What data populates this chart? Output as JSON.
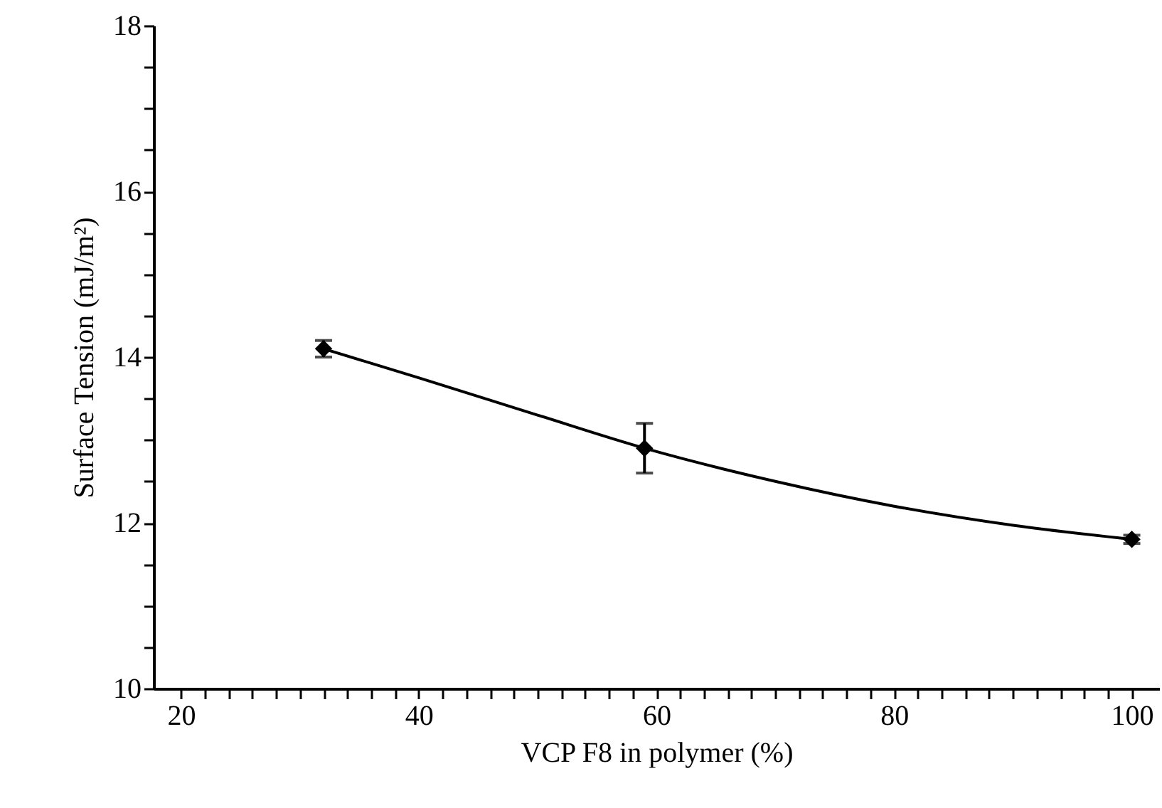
{
  "chart_data": {
    "type": "scatter",
    "xlabel": "VCP F8 in polymer (%)",
    "ylabel": "Surface Tension (mJ/m²)",
    "xlim": [
      17.7,
      102.3
    ],
    "ylim": [
      10,
      18
    ],
    "xticks": [
      20,
      {
        "value": 22,
        "label": null
      },
      {
        "value": 24,
        "label": null
      },
      {
        "value": 26,
        "label": null
      },
      {
        "value": 28,
        "label": null
      },
      {
        "value": 30,
        "label": null
      },
      {
        "value": 32,
        "label": null
      },
      {
        "value": 34,
        "label": null
      },
      {
        "value": 36,
        "label": null
      },
      {
        "value": 38,
        "label": null
      },
      40,
      {
        "value": 42,
        "label": null
      },
      {
        "value": 44,
        "label": null
      },
      {
        "value": 46,
        "label": null
      },
      {
        "value": 48,
        "label": null
      },
      {
        "value": 50,
        "label": null
      },
      {
        "value": 52,
        "label": null
      },
      {
        "value": 54,
        "label": null
      },
      {
        "value": 56,
        "label": null
      },
      {
        "value": 58,
        "label": null
      },
      60,
      {
        "value": 62,
        "label": null
      },
      {
        "value": 64,
        "label": null
      },
      {
        "value": 66,
        "label": null
      },
      {
        "value": 68,
        "label": null
      },
      {
        "value": 70,
        "label": null
      },
      {
        "value": 72,
        "label": null
      },
      {
        "value": 74,
        "label": null
      },
      {
        "value": 76,
        "label": null
      },
      {
        "value": 78,
        "label": null
      },
      80,
      {
        "value": 82,
        "label": null
      },
      {
        "value": 84,
        "label": null
      },
      {
        "value": 86,
        "label": null
      },
      {
        "value": 88,
        "label": null
      },
      {
        "value": 90,
        "label": null
      },
      {
        "value": 92,
        "label": null
      },
      {
        "value": 94,
        "label": null
      },
      {
        "value": 96,
        "label": null
      },
      {
        "value": 98,
        "label": null
      },
      100
    ],
    "yticks": [
      10,
      {
        "value": 10.5,
        "label": null
      },
      {
        "value": 11,
        "label": null
      },
      {
        "value": 11.5,
        "label": null
      },
      12,
      {
        "value": 12.5,
        "label": null
      },
      {
        "value": 13,
        "label": null
      },
      {
        "value": 13.5,
        "label": null
      },
      14,
      {
        "value": 14.5,
        "label": null
      },
      {
        "value": 15,
        "label": null
      },
      {
        "value": 15.5,
        "label": null
      },
      16,
      {
        "value": 16.5,
        "label": null
      },
      {
        "value": 17,
        "label": null
      },
      {
        "value": 17.5,
        "label": null
      },
      18
    ],
    "grid": false,
    "series": [
      {
        "type": "line",
        "color": "#000000",
        "marker": "none",
        "line_style": "solid",
        "x": [
          32,
          40,
          50,
          59,
          70,
          80,
          90,
          100
        ],
        "values": [
          14.1,
          13.75,
          13.3,
          12.9,
          12.5,
          12.2,
          11.97,
          11.8
        ]
      },
      {
        "type": "scatter",
        "color": "#000000",
        "marker": "diamond",
        "x": [
          32,
          59,
          100
        ],
        "values": [
          14.1,
          12.9,
          11.8
        ],
        "errors": [
          0.1,
          0.3,
          0.05
        ]
      }
    ]
  }
}
